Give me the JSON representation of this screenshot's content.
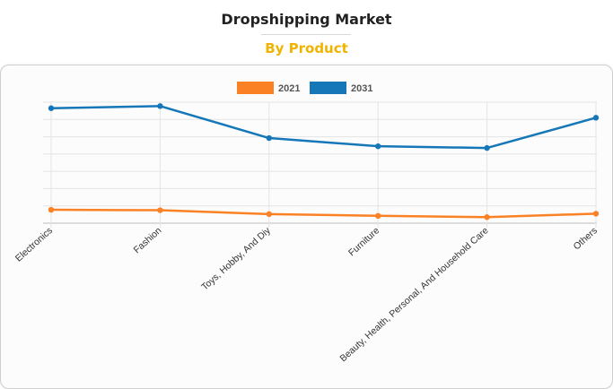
{
  "header": {
    "title": "Dropshipping Market",
    "subtitle": "By Product"
  },
  "chart_data": {
    "type": "line",
    "categories": [
      "Electronics",
      "Fashion",
      "Toys, Hobby, And Diy",
      "Furniture",
      "Beauty, Health, Personal, And Household Care",
      "Others"
    ],
    "series": [
      {
        "name": "2021",
        "color": "#fb8125",
        "values": [
          15.5,
          15.0,
          10.5,
          8.5,
          7.0,
          11.0
        ]
      },
      {
        "name": "2031",
        "color": "#1677b8",
        "values": [
          133.0,
          135.5,
          98.5,
          89.0,
          87.0,
          122.0
        ]
      }
    ],
    "ylim": [
      0,
      140
    ],
    "grid": true,
    "legend": "top-center",
    "xlabel": "",
    "ylabel": ""
  }
}
